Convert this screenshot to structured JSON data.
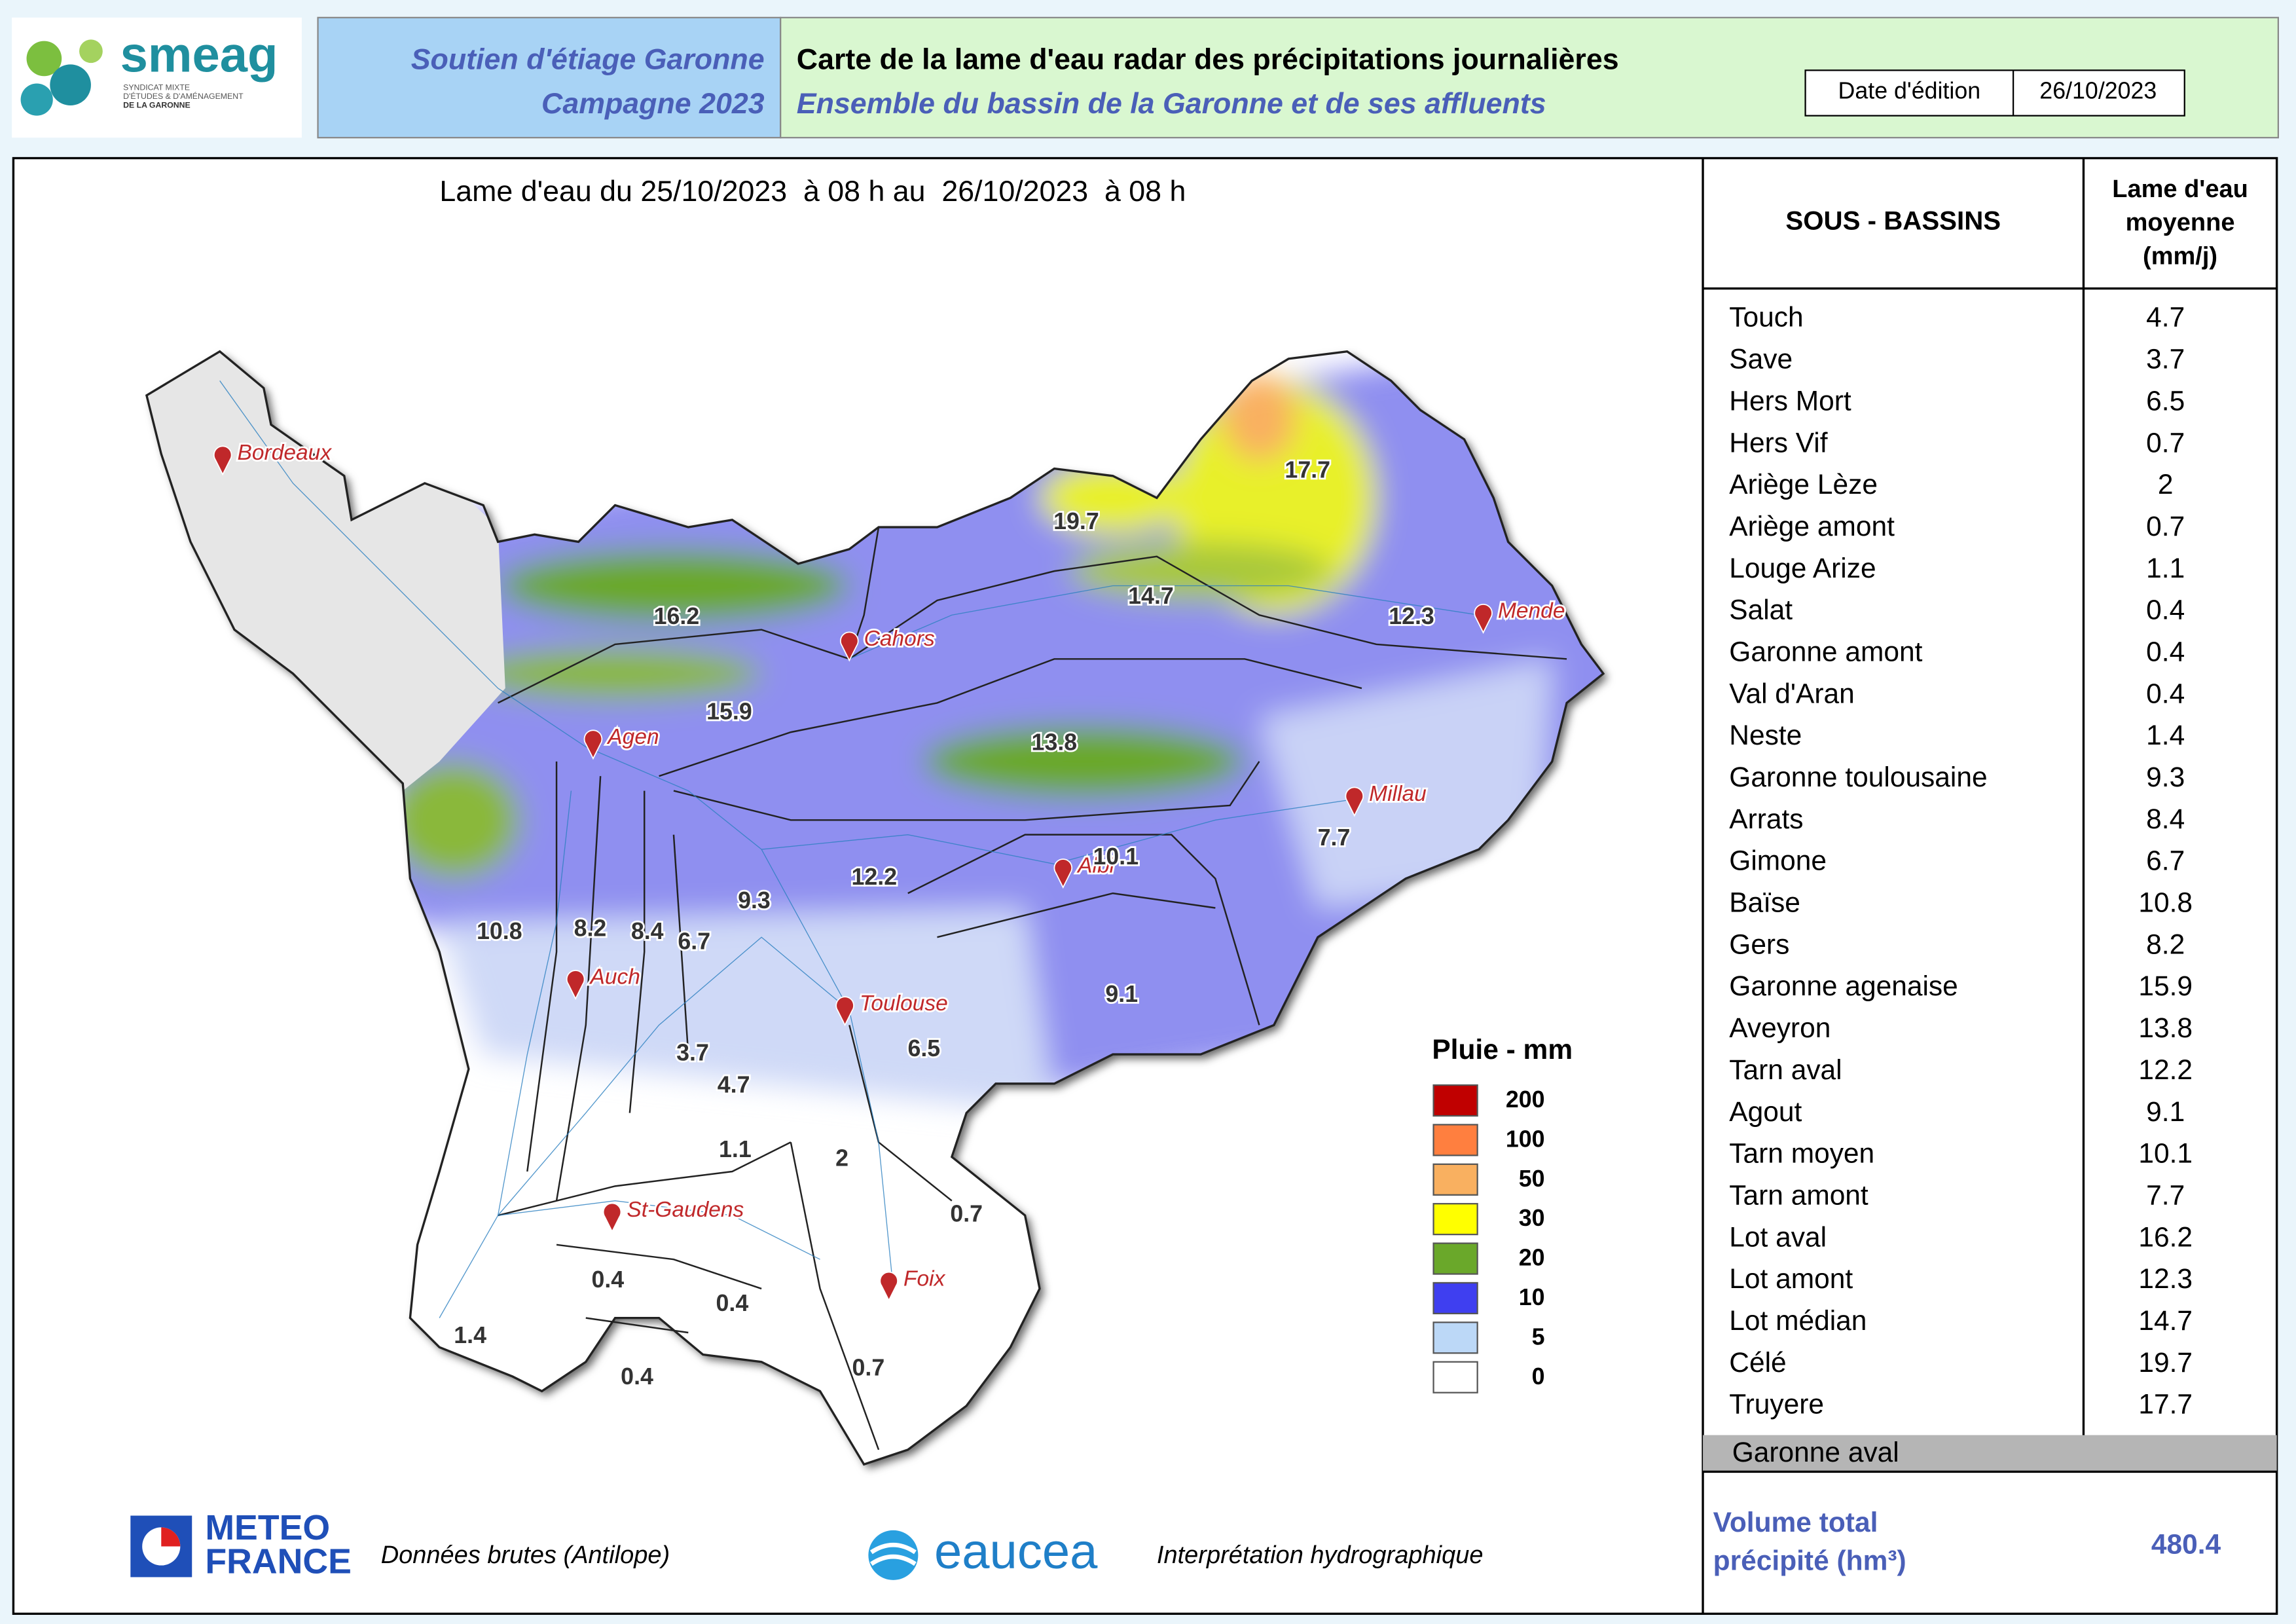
{
  "header": {
    "logo": {
      "name": "smeag",
      "tagline": [
        "SYNDICAT MIXTE",
        "D'ÉTUDES & D'AMÉNAGEMENT",
        "DE LA GARONNE"
      ]
    },
    "program": [
      "Soutien d'étiage Garonne",
      "Campagne 2023"
    ],
    "title": "Carte de la lame d'eau radar des précipitations journalières",
    "subtitle": "Ensemble du bassin de la Garonne et de ses affluents",
    "date_label": "Date d'édition",
    "date": "26/10/2023"
  },
  "map": {
    "title": "Lame d'eau du 25/10/2023  à 08 h au  26/10/2023  à 08 h",
    "cities": [
      "Bordeaux",
      "Cahors",
      "Mende",
      "Agen",
      "Millau",
      "Albi",
      "Auch",
      "Toulouse",
      "St-Gaudens",
      "Foix"
    ],
    "labels": [
      17.7,
      19.7,
      16.2,
      14.7,
      12.3,
      15.9,
      13.8,
      10.1,
      7.7,
      12.2,
      9.3,
      10.8,
      8.2,
      8.4,
      6.7,
      9.1,
      6.5,
      3.7,
      4.7,
      1.1,
      2,
      0.7,
      0.4,
      0.4,
      1.4,
      0.4,
      0.7
    ],
    "legend": {
      "title": "Pluie - mm",
      "items": [
        {
          "value": 200,
          "color": "#c00000"
        },
        {
          "value": 100,
          "color": "#ff7f3f"
        },
        {
          "value": 50,
          "color": "#f9b060"
        },
        {
          "value": 30,
          "color": "#ffff00"
        },
        {
          "value": 20,
          "color": "#6aa82a"
        },
        {
          "value": 10,
          "color": "#3f3ff0"
        },
        {
          "value": 5,
          "color": "#bcd8f7"
        },
        {
          "value": 0,
          "color": "#ffffff"
        }
      ]
    }
  },
  "table": {
    "headers": [
      "SOUS - BASSINS",
      [
        "Lame d'eau",
        "moyenne",
        "(mm/j)"
      ]
    ],
    "rows": [
      [
        "Touch",
        4.7
      ],
      [
        "Save",
        3.7
      ],
      [
        "Hers Mort",
        6.5
      ],
      [
        "Hers Vif",
        0.7
      ],
      [
        "Ariège Lèze",
        2
      ],
      [
        "Ariège amont",
        0.7
      ],
      [
        "Louge Arize",
        1.1
      ],
      [
        "Salat",
        0.4
      ],
      [
        "Garonne amont",
        0.4
      ],
      [
        "Val d'Aran",
        0.4
      ],
      [
        "Neste",
        1.4
      ],
      [
        "Garonne toulousaine",
        9.3
      ],
      [
        "Arrats",
        8.4
      ],
      [
        "Gimone",
        6.7
      ],
      [
        "Baïse",
        10.8
      ],
      [
        "Gers",
        8.2
      ],
      [
        "Garonne agenaise",
        15.9
      ],
      [
        "Aveyron",
        13.8
      ],
      [
        "Tarn aval",
        12.2
      ],
      [
        "Agout",
        9.1
      ],
      [
        "Tarn moyen",
        10.1
      ],
      [
        "Tarn amont",
        7.7
      ],
      [
        "Lot aval",
        16.2
      ],
      [
        "Lot amont",
        12.3
      ],
      [
        "Lot médian",
        14.7
      ],
      [
        "Célé",
        19.7
      ],
      [
        "Truyere",
        17.7
      ],
      [
        "Garonne aval"
      ]
    ],
    "total_label": [
      "Volume total",
      "précipité (hm³)"
    ],
    "total": 480.4
  },
  "footer": {
    "meteo": [
      "METEO",
      "FRANCE"
    ],
    "meteo_note": "Données brutes (Antilope)",
    "eaucea": "eaucea",
    "eaucea_note": "Interprétation hydrographique"
  }
}
